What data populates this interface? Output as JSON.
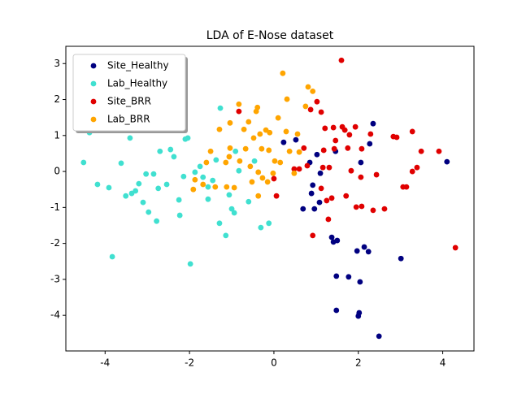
{
  "chart_data": {
    "type": "scatter",
    "title": "LDA of E-Nose dataset",
    "xlim": [
      -4.93,
      4.74
    ],
    "ylim": [
      -4.99,
      3.48
    ],
    "xticks": [
      -4,
      -2,
      0,
      2,
      4
    ],
    "yticks": [
      -4,
      -3,
      -2,
      -1,
      0,
      1,
      2,
      3
    ],
    "legend": "upper left",
    "series": [
      {
        "name": "Site_Healthy",
        "color": "#000080",
        "x": [
          0.23,
          0.52,
          1.02,
          1.46,
          2.27,
          2.06,
          4.1,
          0.92,
          0.89,
          0.69,
          0.96,
          1.08,
          1.37,
          1.5,
          1.41,
          2.14,
          1.97,
          2.24,
          3.01,
          1.48,
          1.77,
          2.04,
          1.48,
          2.02,
          2.0,
          2.49,
          2.35,
          0.85,
          1.1
        ],
        "values": [
          0.81,
          0.88,
          0.47,
          0.56,
          0.77,
          0.25,
          0.27,
          -0.38,
          -0.61,
          -1.04,
          -1.04,
          -0.86,
          -1.83,
          -1.92,
          -1.96,
          -2.1,
          -2.21,
          -2.23,
          -2.42,
          -2.91,
          -2.93,
          -3.07,
          -3.86,
          -3.93,
          -4.02,
          -4.58,
          1.33,
          0.25,
          -0.05
        ]
      },
      {
        "name": "Lab_Healthy",
        "color": "#40e0d0",
        "x": [
          -4.37,
          -4.51,
          -4.18,
          -3.91,
          -3.62,
          -3.41,
          -3.51,
          -3.37,
          -3.28,
          -3.1,
          -3.2,
          -3.03,
          -2.85,
          -2.97,
          -2.78,
          -2.74,
          -2.54,
          -2.7,
          -2.45,
          -2.37,
          -2.25,
          -2.23,
          -2.1,
          -2.04,
          -1.98,
          -3.83,
          -1.87,
          -1.75,
          -1.68,
          -1.56,
          -1.45,
          -1.37,
          -1.27,
          -1.29,
          -1.14,
          -1.06,
          -1.0,
          -0.94,
          -0.91,
          -0.83,
          -0.6,
          -0.31,
          -0.12,
          -0.46,
          -1.56,
          -2.14
        ],
        "values": [
          1.08,
          0.25,
          -0.36,
          -0.45,
          0.23,
          0.93,
          -0.68,
          -0.61,
          -0.54,
          -0.86,
          -0.34,
          -0.07,
          -0.07,
          -1.13,
          -1.38,
          -0.47,
          -0.36,
          0.56,
          0.61,
          0.41,
          -0.79,
          -1.22,
          0.9,
          0.93,
          -2.57,
          -2.37,
          -0.02,
          0.14,
          -0.16,
          -0.77,
          -0.25,
          0.32,
          1.76,
          -1.44,
          -1.78,
          -0.65,
          -1.04,
          -1.15,
          0.56,
          0.02,
          -0.84,
          -1.56,
          -1.44,
          0.29,
          -0.43,
          -0.14
        ]
      },
      {
        "name": "Site_BRR",
        "color": "#e00000",
        "x": [
          1.6,
          1.02,
          1.12,
          0.87,
          1.21,
          1.41,
          1.62,
          1.68,
          1.79,
          1.93,
          1.43,
          1.18,
          1.46,
          1.75,
          2.08,
          2.29,
          2.83,
          2.91,
          3.28,
          3.49,
          3.91,
          3.39,
          3.28,
          2.43,
          2.06,
          1.83,
          1.31,
          1.16,
          0.79,
          0.6,
          1.12,
          1.37,
          1.25,
          1.29,
          1.71,
          1.95,
          2.08,
          2.35,
          2.62,
          3.06,
          3.14,
          0.06,
          0.0,
          -0.83,
          0.92,
          4.3,
          0.48,
          0.71
        ],
        "values": [
          3.09,
          1.94,
          1.65,
          1.72,
          1.2,
          1.22,
          1.24,
          1.15,
          1.02,
          1.24,
          0.63,
          0.59,
          0.86,
          0.65,
          0.63,
          1.04,
          0.97,
          0.95,
          1.11,
          0.56,
          0.56,
          0.11,
          0.0,
          -0.09,
          -0.16,
          0.02,
          0.11,
          0.11,
          0.16,
          0.07,
          -0.47,
          -0.74,
          -0.81,
          -1.33,
          -0.68,
          -0.99,
          -0.97,
          -1.08,
          -1.04,
          -0.43,
          -0.43,
          -0.68,
          -0.2,
          1.67,
          -1.78,
          -2.12,
          0.07,
          0.65
        ]
      },
      {
        "name": "Lab_BRR",
        "color": "#ffa500",
        "x": [
          0.21,
          0.81,
          0.92,
          0.31,
          0.75,
          0.1,
          -0.83,
          -0.39,
          -0.42,
          -0.6,
          -0.71,
          -1.04,
          -1.29,
          -0.19,
          -0.1,
          -0.33,
          -0.48,
          0.29,
          0.56,
          -1.04,
          -0.67,
          -0.29,
          -0.12,
          0.37,
          0.6,
          -1.5,
          -1.6,
          -1.14,
          -1.06,
          -0.81,
          -0.56,
          -0.37,
          -0.27,
          -0.02,
          0.02,
          0.15,
          -1.87,
          -1.91,
          -1.68,
          -1.39,
          -1.12,
          -0.94,
          -0.52,
          -0.37,
          -0.15,
          0.48
        ],
        "values": [
          2.73,
          2.35,
          2.23,
          2.01,
          1.81,
          1.49,
          1.87,
          1.78,
          1.67,
          1.38,
          1.17,
          1.35,
          1.17,
          1.15,
          1.08,
          1.04,
          0.93,
          1.11,
          1.04,
          0.65,
          0.63,
          0.63,
          0.59,
          0.56,
          0.54,
          0.56,
          0.25,
          0.25,
          0.41,
          0.29,
          0.14,
          -0.02,
          -0.18,
          -0.05,
          0.29,
          0.25,
          -0.23,
          -0.5,
          -0.36,
          -0.43,
          -0.43,
          -0.45,
          -0.29,
          -0.68,
          -0.29,
          -0.05
        ]
      }
    ]
  }
}
